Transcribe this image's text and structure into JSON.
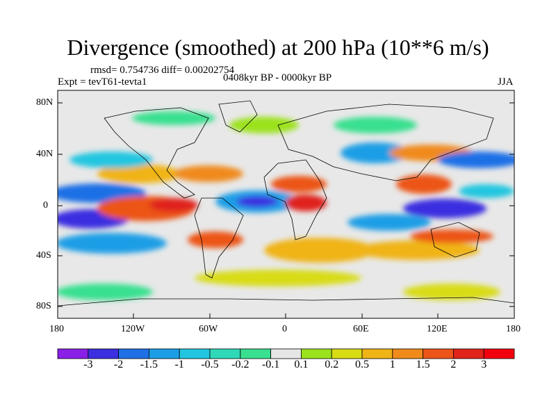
{
  "title": "Divergence (smoothed) at 200 hPa (10**6 m/s)",
  "stats": "rmsd= 0.754736 diff= 0.00202754",
  "experiment": "Expt = tevT61-tevta1",
  "period": "0408kyr BP - 0000kyr BP",
  "season": "JJA",
  "axes": {
    "lat_labels": [
      "80N",
      "40N",
      "0",
      "40S",
      "80S"
    ],
    "lon_labels": [
      "180",
      "120W",
      "60W",
      "0",
      "60E",
      "120E",
      "180"
    ]
  },
  "colorbar": {
    "labels": [
      "-3",
      "-2",
      "-1.5",
      "-1",
      "-0.5",
      "-0.2",
      "-0.1",
      "0.1",
      "0.2",
      "0.5",
      "1",
      "1.5",
      "2",
      "3"
    ],
    "colors": [
      "#8a1fe8",
      "#3b2fe0",
      "#1f6fe6",
      "#1c9ee6",
      "#22c6e0",
      "#2fd9b8",
      "#38e08f",
      "#e6e6e6",
      "#9be21e",
      "#d8dc15",
      "#f0b417",
      "#f08a1a",
      "#ec5419",
      "#e0241a",
      "#f3000f"
    ]
  },
  "colors": {
    "map_background": "#e8e8e8",
    "coastline": "#000000"
  }
}
